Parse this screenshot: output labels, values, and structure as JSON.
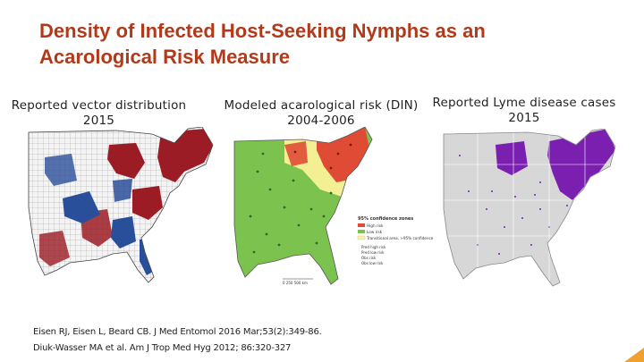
{
  "slide": {
    "title_line1": "Density of Infected Host-Seeking Nymphs as an",
    "title_line2": "Acarological Risk Measure",
    "accent_color": "#b23a1a"
  },
  "panels": [
    {
      "caption_line1": "Reported vector distribution",
      "caption_line2": "2015",
      "map_name": "us-east-vector-map"
    },
    {
      "caption_line1": "Modeled acarological risk (DIN)",
      "caption_line2": "2004-2006",
      "map_name": "us-east-risk-model-map"
    },
    {
      "caption_line1": "Reported Lyme disease cases",
      "caption_line2": "2015",
      "map_name": "us-east-lyme-cases-map"
    }
  ],
  "legend": {
    "title": "95% confidence zones",
    "items": [
      "High risk",
      "Low risk",
      "Transitional area, >95% confidence"
    ],
    "markers": [
      "Pred high risk",
      "Pred low risk",
      "Obs risk",
      "Obs low risk"
    ],
    "scale": "0   250   500 km"
  },
  "citations": {
    "line1": "Eisen RJ, Eisen L, Beard CB. J Med Entomol 2016 Mar;53(2):349-86.",
    "line2": "Diuk-Wasser MA et al. Am J Trop Med Hyg 2012; 86:320-327"
  }
}
